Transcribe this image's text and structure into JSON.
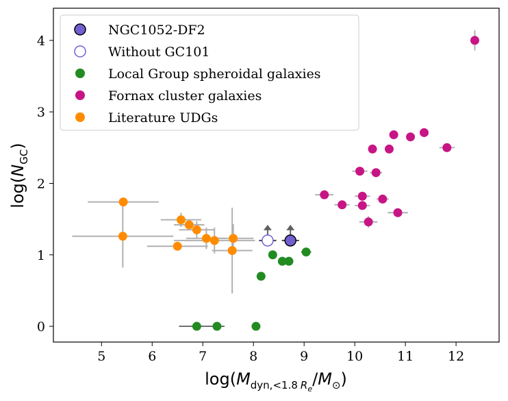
{
  "chart_data": {
    "type": "scatter",
    "xlabel": {
      "pre": "log(",
      "M": "M",
      "sub": "dyn,<1.8",
      "R": "R",
      "e": "e",
      "slash": "/",
      "Msun": "M",
      "odot": "⊙",
      "close": ")"
    },
    "ylabel": {
      "pre": "log(",
      "N": "N",
      "sub": "GC",
      "close": ")"
    },
    "xlim": [
      4.05,
      12.85
    ],
    "ylim": [
      -0.22,
      4.45
    ],
    "xticks": [
      "5",
      "6",
      "7",
      "8",
      "9",
      "10",
      "11",
      "12"
    ],
    "yticks": [
      "0",
      "1",
      "2",
      "3",
      "4"
    ],
    "legend": {
      "position": "upper-left",
      "entries": [
        "NGC1052-DF2",
        "Without GC101",
        "Local Group spheroidal galaxies",
        "Fornax cluster galaxies",
        "Literature UDGs"
      ]
    },
    "colors": {
      "df2_fill": "#7060d0",
      "df2_edge": "#000000",
      "nogc_edge": "#7060d0",
      "local": "#228b22",
      "fornax": "#c71585",
      "udg": "#ff8c00",
      "errbar": "#b0b0b0",
      "arrow": "#606060"
    },
    "series": [
      {
        "name": "NGC1052-DF2",
        "points": [
          {
            "x": 8.73,
            "y": 1.2,
            "xerr": 0.17,
            "lower_limit": true
          }
        ]
      },
      {
        "name": "Without GC101",
        "points": [
          {
            "x": 8.28,
            "y": 1.2,
            "xerr": 0.17,
            "lower_limit": true
          }
        ]
      },
      {
        "name": "Local Group spheroidal galaxies",
        "points": [
          {
            "x": 6.88,
            "y": 0.0,
            "xerr": 0.35
          },
          {
            "x": 7.28,
            "y": 0.0,
            "xerr": 0.15
          },
          {
            "x": 8.05,
            "y": 0.0
          },
          {
            "x": 8.15,
            "y": 0.7
          },
          {
            "x": 8.38,
            "y": 1.0
          },
          {
            "x": 8.57,
            "y": 0.91
          },
          {
            "x": 8.7,
            "y": 0.91
          },
          {
            "x": 9.04,
            "y": 1.04,
            "xerr": 0.1
          }
        ]
      },
      {
        "name": "Fornax cluster galaxies",
        "points": [
          {
            "x": 9.4,
            "y": 1.84,
            "xerr": 0.18
          },
          {
            "x": 9.75,
            "y": 1.7,
            "xerr": 0.15
          },
          {
            "x": 10.1,
            "y": 2.17,
            "xerr": 0.15
          },
          {
            "x": 10.15,
            "y": 1.82,
            "xerr": 0.15
          },
          {
            "x": 10.15,
            "y": 1.69,
            "xerr": 0.15
          },
          {
            "x": 10.27,
            "y": 1.46,
            "xerr": 0.18,
            "yerr": 0.08
          },
          {
            "x": 10.35,
            "y": 2.48
          },
          {
            "x": 10.42,
            "y": 2.15,
            "xerr": 0.12
          },
          {
            "x": 10.55,
            "y": 1.78,
            "xerr": 0.12
          },
          {
            "x": 10.68,
            "y": 2.48
          },
          {
            "x": 10.77,
            "y": 2.68
          },
          {
            "x": 10.85,
            "y": 1.59,
            "xerr": 0.2
          },
          {
            "x": 11.1,
            "y": 2.65
          },
          {
            "x": 11.37,
            "y": 2.71
          },
          {
            "x": 11.82,
            "y": 2.5,
            "xerr": 0.15
          },
          {
            "x": 12.37,
            "y": 4.0,
            "yerr": 0.14
          }
        ]
      },
      {
        "name": "Literature UDGs",
        "points": [
          {
            "x": 5.43,
            "y": 1.74,
            "xerr": 0.7
          },
          {
            "x": 5.42,
            "y": 1.26,
            "xerr": 1.0,
            "yerr": 0.44
          },
          {
            "x": 6.5,
            "y": 1.12,
            "xerr": 0.6
          },
          {
            "x": 6.57,
            "y": 1.49,
            "xerr": 0.4,
            "yerr": 0.1
          },
          {
            "x": 6.73,
            "y": 1.42,
            "xerr": 0.3
          },
          {
            "x": 6.88,
            "y": 1.35,
            "xerr": 0.35,
            "yerr": 0.12
          },
          {
            "x": 7.07,
            "y": 1.23,
            "xerr": 0.4,
            "yerr": 0.15
          },
          {
            "x": 7.23,
            "y": 1.2,
            "xerr": 0.8,
            "yerr": 0.18
          },
          {
            "x": 7.58,
            "y": 1.06,
            "xerr": 0.4,
            "yerr": 0.6
          },
          {
            "x": 7.6,
            "y": 1.23,
            "xerr": 0.4,
            "yerr": 0.2
          }
        ]
      }
    ]
  }
}
